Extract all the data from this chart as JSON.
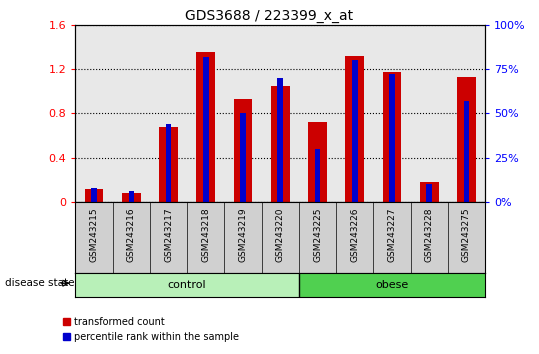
{
  "title": "GDS3688 / 223399_x_at",
  "samples": [
    "GSM243215",
    "GSM243216",
    "GSM243217",
    "GSM243218",
    "GSM243219",
    "GSM243220",
    "GSM243225",
    "GSM243226",
    "GSM243227",
    "GSM243228",
    "GSM243275"
  ],
  "transformed_count": [
    0.12,
    0.08,
    0.68,
    1.35,
    0.93,
    1.05,
    0.72,
    1.32,
    1.17,
    0.18,
    1.13
  ],
  "percentile_rank_pct": [
    8,
    6,
    44,
    82,
    50,
    70,
    30,
    80,
    72,
    10,
    57
  ],
  "groups": [
    {
      "label": "control",
      "start": 0,
      "end": 6,
      "color": "#b8f0b8"
    },
    {
      "label": "obese",
      "start": 6,
      "end": 11,
      "color": "#50d050"
    }
  ],
  "ylim_left": [
    0,
    1.6
  ],
  "ylim_right": [
    0,
    100
  ],
  "yticks_left": [
    0,
    0.4,
    0.8,
    1.2,
    1.6
  ],
  "yticks_right": [
    0,
    25,
    50,
    75,
    100
  ],
  "bar_color_red": "#cc0000",
  "bar_color_blue": "#0000cc",
  "bar_width": 0.5,
  "blue_bar_width": 0.15,
  "plot_bg": "#e8e8e8",
  "label_bg": "#d0d0d0",
  "legend_red_label": "transformed count",
  "legend_blue_label": "percentile rank within the sample",
  "disease_state_label": "disease state",
  "n_control": 6,
  "n_total": 11
}
